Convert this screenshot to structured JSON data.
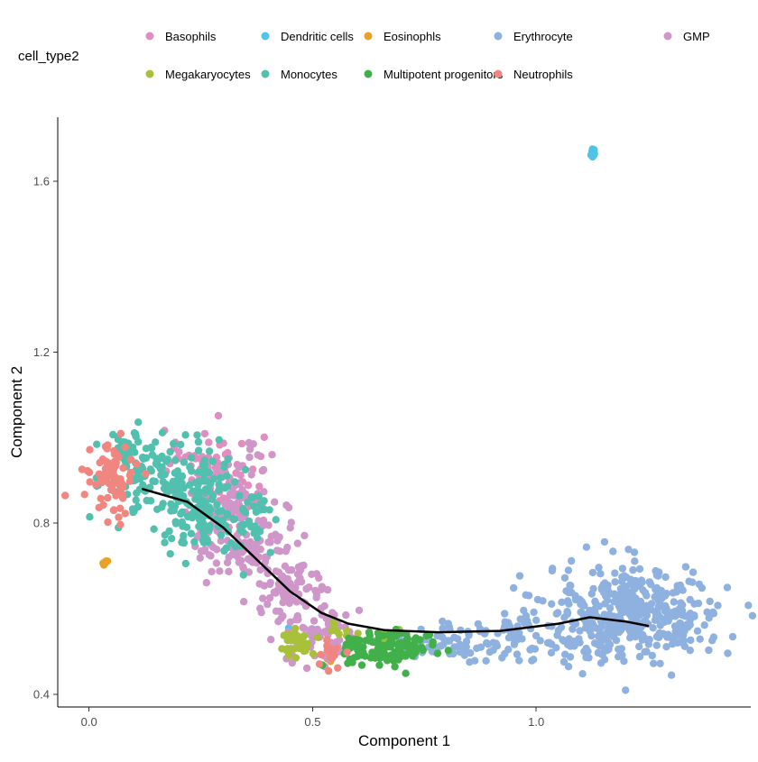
{
  "chart_data": {
    "type": "scatter",
    "title": "",
    "xlabel": "Component 1",
    "ylabel": "Component 2",
    "xlim": [
      -0.07,
      1.48
    ],
    "ylim": [
      0.37,
      1.75
    ],
    "xticks": [
      0.0,
      0.5,
      1.0
    ],
    "xtick_labels": [
      "0.0",
      "0.5",
      "1.0"
    ],
    "yticks": [
      0.4,
      0.8,
      1.2,
      1.6
    ],
    "ytick_labels": [
      "0.4",
      "0.8",
      "1.2",
      "1.6"
    ],
    "grid": false,
    "legend": {
      "title": "cell_type2",
      "position": "top"
    },
    "series": [
      {
        "name": "Basophils",
        "color": "#E08DBF",
        "clusters": [
          {
            "cx": 0.29,
            "cy": 0.9,
            "sx": 0.05,
            "sy": 0.06,
            "n": 80
          },
          {
            "cx": 0.24,
            "cy": 0.95,
            "sx": 0.04,
            "sy": 0.03,
            "n": 20
          }
        ]
      },
      {
        "name": "Dendritic cells",
        "color": "#4FC3E8",
        "clusters": [
          {
            "cx": 1.125,
            "cy": 1.67,
            "sx": 0.005,
            "sy": 0.006,
            "n": 12
          },
          {
            "cx": 0.49,
            "cy": 0.55,
            "sx": 0.02,
            "sy": 0.02,
            "n": 3
          }
        ]
      },
      {
        "name": "Eosinophls",
        "color": "#E9A226",
        "clusters": [
          {
            "cx": 0.035,
            "cy": 0.705,
            "sx": 0.003,
            "sy": 0.004,
            "n": 6
          },
          {
            "cx": 0.535,
            "cy": 0.48,
            "sx": 0.004,
            "sy": 0.004,
            "n": 3
          }
        ]
      },
      {
        "name": "Erythrocyte",
        "color": "#8EB1DF",
        "clusters": [
          {
            "cx": 1.22,
            "cy": 0.59,
            "sx": 0.1,
            "sy": 0.055,
            "n": 450
          },
          {
            "cx": 0.92,
            "cy": 0.525,
            "sx": 0.09,
            "sy": 0.025,
            "n": 90
          },
          {
            "cx": 0.76,
            "cy": 0.52,
            "sx": 0.04,
            "sy": 0.02,
            "n": 30
          }
        ]
      },
      {
        "name": "GMP",
        "color": "#CE96C9",
        "clusters": [
          {
            "cx": 0.34,
            "cy": 0.76,
            "sx": 0.05,
            "sy": 0.04,
            "n": 110
          },
          {
            "cx": 0.45,
            "cy": 0.64,
            "sx": 0.045,
            "sy": 0.04,
            "n": 90
          },
          {
            "cx": 0.53,
            "cy": 0.53,
            "sx": 0.04,
            "sy": 0.035,
            "n": 60
          },
          {
            "cx": 0.33,
            "cy": 0.87,
            "sx": 0.04,
            "sy": 0.05,
            "n": 60
          }
        ]
      },
      {
        "name": "Megakaryocytes",
        "color": "#A8C03A",
        "clusters": [
          {
            "cx": 0.46,
            "cy": 0.515,
            "sx": 0.02,
            "sy": 0.02,
            "n": 40
          },
          {
            "cx": 0.57,
            "cy": 0.55,
            "sx": 0.015,
            "sy": 0.015,
            "n": 8
          },
          {
            "cx": 0.68,
            "cy": 0.55,
            "sx": 0.01,
            "sy": 0.01,
            "n": 5
          }
        ]
      },
      {
        "name": "Monocytes",
        "color": "#52C0AE",
        "clusters": [
          {
            "cx": 0.15,
            "cy": 0.9,
            "sx": 0.06,
            "sy": 0.05,
            "n": 110
          },
          {
            "cx": 0.25,
            "cy": 0.85,
            "sx": 0.04,
            "sy": 0.06,
            "n": 120
          },
          {
            "cx": 0.36,
            "cy": 0.8,
            "sx": 0.03,
            "sy": 0.04,
            "n": 40
          },
          {
            "cx": 0.09,
            "cy": 0.97,
            "sx": 0.03,
            "sy": 0.02,
            "n": 30
          }
        ]
      },
      {
        "name": "Multipotent progenitors",
        "color": "#42B04A",
        "clusters": [
          {
            "cx": 0.68,
            "cy": 0.51,
            "sx": 0.05,
            "sy": 0.02,
            "n": 100
          },
          {
            "cx": 0.6,
            "cy": 0.51,
            "sx": 0.02,
            "sy": 0.015,
            "n": 20
          }
        ]
      },
      {
        "name": "Neutrophils",
        "color": "#F1857F",
        "clusters": [
          {
            "cx": 0.05,
            "cy": 0.9,
            "sx": 0.025,
            "sy": 0.04,
            "n": 80
          },
          {
            "cx": 0.54,
            "cy": 0.49,
            "sx": 0.015,
            "sy": 0.02,
            "n": 15
          }
        ]
      }
    ],
    "trajectory": [
      [
        0.12,
        0.88
      ],
      [
        0.22,
        0.85
      ],
      [
        0.3,
        0.79
      ],
      [
        0.38,
        0.71
      ],
      [
        0.45,
        0.64
      ],
      [
        0.52,
        0.59
      ],
      [
        0.58,
        0.565
      ],
      [
        0.66,
        0.55
      ],
      [
        0.78,
        0.545
      ],
      [
        0.92,
        0.548
      ],
      [
        1.05,
        0.565
      ],
      [
        1.12,
        0.58
      ],
      [
        1.2,
        0.57
      ],
      [
        1.25,
        0.56
      ]
    ]
  }
}
